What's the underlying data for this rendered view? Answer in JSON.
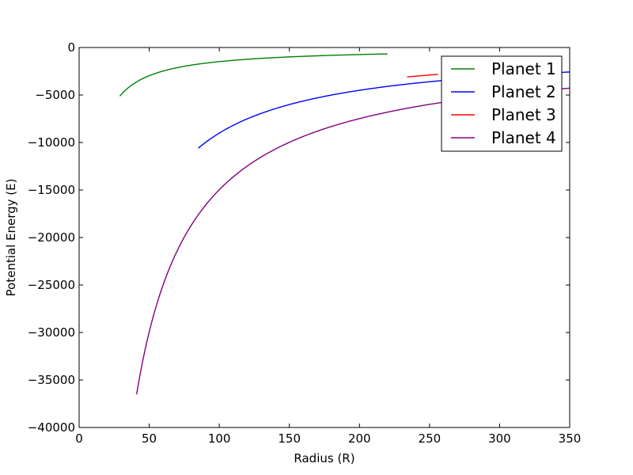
{
  "chart_data": {
    "type": "line",
    "title": "",
    "xlabel": "Radius (R)",
    "ylabel": "Potential Energy (E)",
    "xlim": [
      0,
      350
    ],
    "ylim": [
      -40000,
      0
    ],
    "xticks": [
      0,
      50,
      100,
      150,
      200,
      250,
      300,
      350
    ],
    "yticks": [
      0,
      -5000,
      -10000,
      -15000,
      -20000,
      -25000,
      -30000,
      -35000,
      -40000
    ],
    "xtick_labels": [
      "0",
      "50",
      "100",
      "150",
      "200",
      "250",
      "300",
      "350"
    ],
    "ytick_labels": [
      "0",
      "−5000",
      "−10000",
      "−15000",
      "−20000",
      "−25000",
      "−30000",
      "−35000",
      "−40000"
    ],
    "grid": false,
    "legend_position": "top-right",
    "series": [
      {
        "name": "Planet 1",
        "color": "#008000",
        "k": 148500,
        "r_start": 29,
        "r_end": 220
      },
      {
        "name": "Planet 2",
        "color": "#0000ff",
        "k": 901000,
        "r_start": 85,
        "r_end": 350
      },
      {
        "name": "Planet 3",
        "color": "#ff0000",
        "k": 725000,
        "r_start": 234,
        "r_end": 256
      },
      {
        "name": "Planet 4",
        "color": "#800080",
        "k": 1497000,
        "r_start": 41,
        "r_end": 350
      }
    ]
  }
}
